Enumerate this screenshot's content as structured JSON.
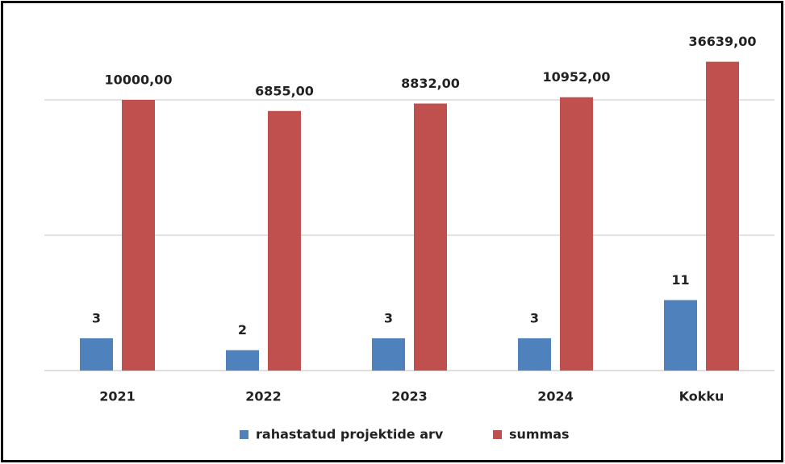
{
  "chart_data": {
    "type": "bar",
    "categories": [
      "2021",
      "2022",
      "2023",
      "2024",
      "Kokku"
    ],
    "series": [
      {
        "name": "rahastatud projektide arv",
        "color": "#4f81bd",
        "values": [
          3,
          2,
          3,
          3,
          11
        ]
      },
      {
        "name": "summas",
        "color": "#c0504d",
        "values": [
          10000,
          6855,
          8832,
          10952,
          36639
        ],
        "value_labels": [
          "10000,00",
          "6855,00",
          "8832,00",
          "10952,00",
          "36639,00"
        ]
      }
    ],
    "log_scale": true,
    "ylim": [
      1,
      100000
    ],
    "yticks": [
      1,
      100,
      10000
    ],
    "grid": true
  }
}
